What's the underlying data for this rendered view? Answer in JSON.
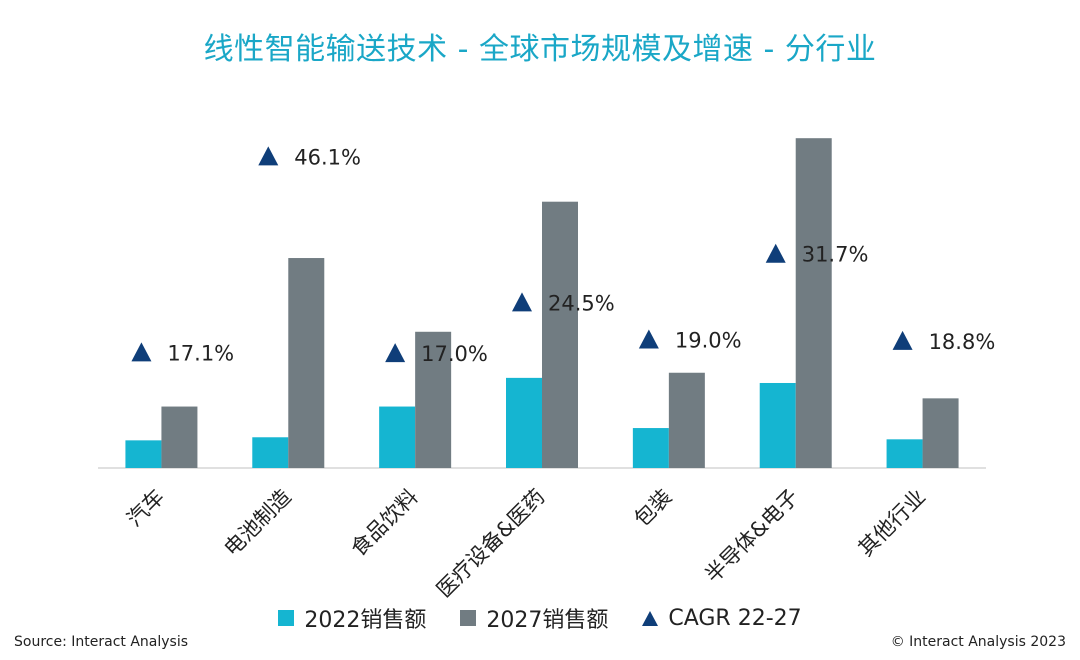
{
  "chart_data": {
    "type": "bar",
    "title": "线性智能输送技术 - 全球市场规模及增速 - 分行业",
    "categories": [
      "汽车",
      "电池制造",
      "食品饮料",
      "医疗设备&医药",
      "包装",
      "半导体&电子",
      "其他行业"
    ],
    "series": [
      {
        "name": "2022销售额",
        "values": [
          2.7,
          3.0,
          6.0,
          8.8,
          3.9,
          8.3,
          2.8
        ],
        "color": "#15B5D1"
      },
      {
        "name": "2027销售额",
        "values": [
          6.0,
          20.5,
          13.3,
          26.0,
          9.3,
          32.2,
          6.8
        ],
        "color": "#717C82"
      }
    ],
    "cagr": {
      "name": "CAGR 22-27",
      "labels": [
        "17.1%",
        "46.1%",
        "17.0%",
        "24.5%",
        "19.0%",
        "31.7%",
        "18.8%"
      ],
      "values": [
        17.1,
        46.1,
        17.0,
        24.5,
        19.0,
        31.7,
        18.8
      ],
      "color": "#0F3E79"
    },
    "ylim": [
      0,
      33
    ],
    "y2lim": [
      0,
      50
    ],
    "legend_position": "bottom",
    "grid": false
  },
  "footer": {
    "source": "Source: Interact Analysis",
    "copyright": "© Interact Analysis 2023"
  }
}
